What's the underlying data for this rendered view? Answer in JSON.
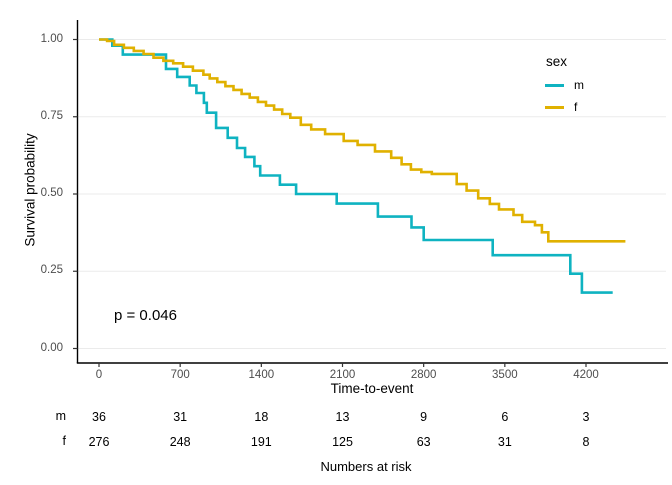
{
  "colors": {
    "background": "#FFFFFF",
    "grid": "#EBEBEB",
    "axis": "#000000",
    "tick": "#333333",
    "tick_label": "#4D4D4D",
    "text": "#000000",
    "series_m": "#0FB3C1",
    "series_f": "#E0B100"
  },
  "chart_data": {
    "type": "line",
    "subtype": "kaplan-meier-step-curves",
    "title": "",
    "xlabel": "Time-to-event",
    "ylabel": "Survival probability",
    "xlim": [
      0,
      4890
    ],
    "ylim": [
      0,
      1
    ],
    "x_ticks": [
      0,
      700,
      1400,
      2100,
      2800,
      3500,
      4200
    ],
    "y_ticks": [
      0,
      0.25,
      0.5,
      0.75,
      1
    ],
    "grid": "horizontal-only",
    "legend_position": "top-right-inside",
    "annotation": {
      "text": "p = 0.046",
      "t": 140,
      "s": 0.1
    },
    "legend": {
      "title": "sex",
      "items": [
        {
          "label": "m",
          "color": "#0FB3C1"
        },
        {
          "label": "f",
          "color": "#E0B100"
        }
      ]
    },
    "series": [
      {
        "name": "m",
        "color": "#0FB3C1",
        "step": true,
        "points": [
          [
            0,
            1.0
          ],
          [
            115,
            0.98
          ],
          [
            205,
            0.951
          ],
          [
            578,
            0.905
          ],
          [
            674,
            0.879
          ],
          [
            782,
            0.851
          ],
          [
            840,
            0.827
          ],
          [
            905,
            0.795
          ],
          [
            930,
            0.763
          ],
          [
            1010,
            0.714
          ],
          [
            1110,
            0.682
          ],
          [
            1190,
            0.649
          ],
          [
            1260,
            0.62
          ],
          [
            1340,
            0.59
          ],
          [
            1390,
            0.56
          ],
          [
            1560,
            0.53
          ],
          [
            1700,
            0.5
          ],
          [
            2050,
            0.469
          ],
          [
            2405,
            0.427
          ],
          [
            2695,
            0.392
          ],
          [
            2800,
            0.351
          ],
          [
            3395,
            0.302
          ],
          [
            4065,
            0.242
          ],
          [
            4165,
            0.181
          ],
          [
            4430,
            0.181
          ]
        ]
      },
      {
        "name": "f",
        "color": "#E0B100",
        "step": true,
        "points": [
          [
            0,
            1.0
          ],
          [
            70,
            0.995
          ],
          [
            130,
            0.983
          ],
          [
            215,
            0.973
          ],
          [
            300,
            0.963
          ],
          [
            385,
            0.953
          ],
          [
            470,
            0.941
          ],
          [
            555,
            0.931
          ],
          [
            640,
            0.923
          ],
          [
            725,
            0.912
          ],
          [
            810,
            0.899
          ],
          [
            900,
            0.886
          ],
          [
            955,
            0.874
          ],
          [
            1020,
            0.862
          ],
          [
            1090,
            0.849
          ],
          [
            1160,
            0.837
          ],
          [
            1230,
            0.824
          ],
          [
            1300,
            0.812
          ],
          [
            1370,
            0.798
          ],
          [
            1440,
            0.786
          ],
          [
            1510,
            0.773
          ],
          [
            1580,
            0.759
          ],
          [
            1650,
            0.747
          ],
          [
            1740,
            0.724
          ],
          [
            1830,
            0.709
          ],
          [
            1950,
            0.694
          ],
          [
            2110,
            0.672
          ],
          [
            2230,
            0.659
          ],
          [
            2380,
            0.638
          ],
          [
            2520,
            0.617
          ],
          [
            2610,
            0.596
          ],
          [
            2690,
            0.579
          ],
          [
            2780,
            0.571
          ],
          [
            2870,
            0.565
          ],
          [
            3085,
            0.532
          ],
          [
            3170,
            0.511
          ],
          [
            3270,
            0.486
          ],
          [
            3370,
            0.468
          ],
          [
            3450,
            0.45
          ],
          [
            3575,
            0.432
          ],
          [
            3650,
            0.41
          ],
          [
            3760,
            0.399
          ],
          [
            3820,
            0.376
          ],
          [
            3875,
            0.347
          ],
          [
            4540,
            0.347
          ]
        ]
      }
    ],
    "risk_table": {
      "title": "Numbers at risk",
      "times": [
        0,
        700,
        1400,
        2100,
        2800,
        3500,
        4200
      ],
      "rows": [
        {
          "label": "m",
          "values": [
            36,
            31,
            18,
            13,
            9,
            6,
            3
          ]
        },
        {
          "label": "f",
          "values": [
            276,
            248,
            191,
            125,
            63,
            31,
            8
          ]
        }
      ]
    }
  }
}
